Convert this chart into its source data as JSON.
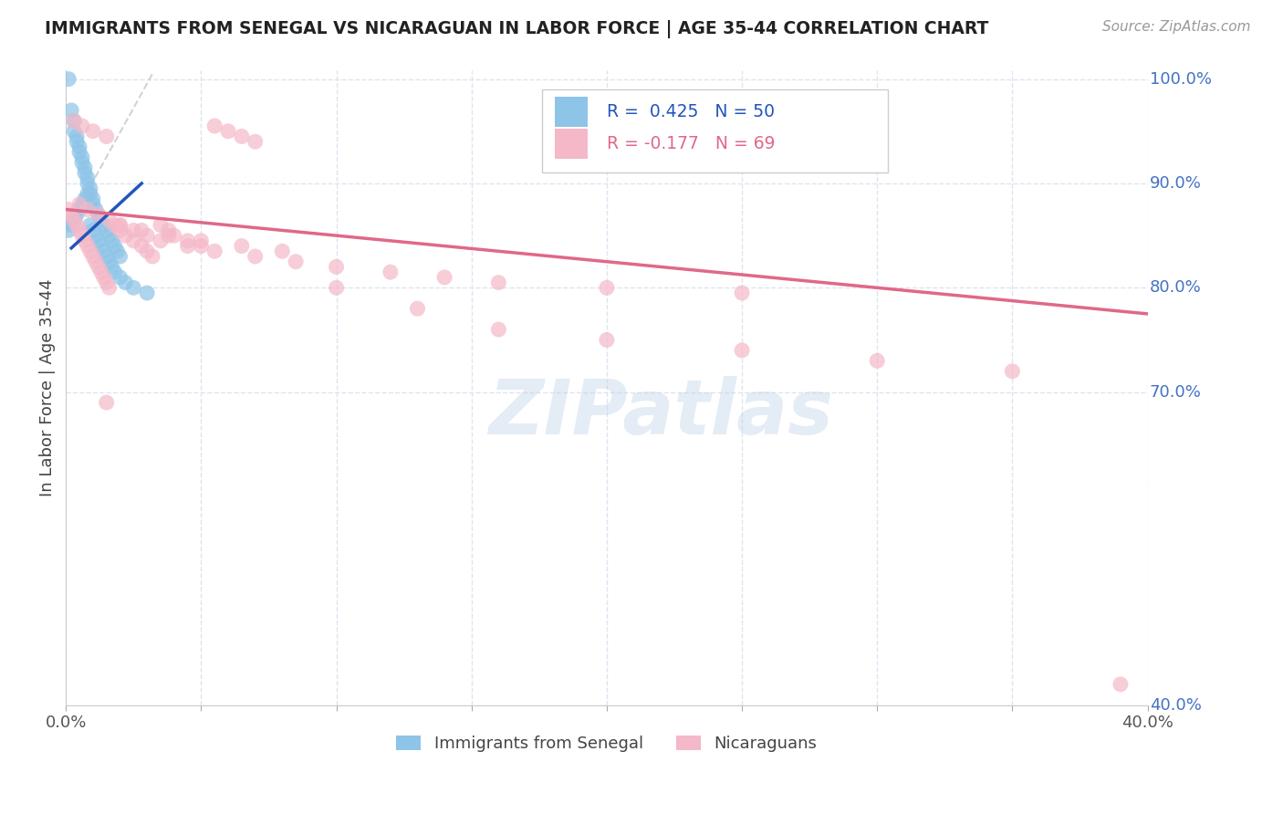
{
  "title": "IMMIGRANTS FROM SENEGAL VS NICARAGUAN IN LABOR FORCE | AGE 35-44 CORRELATION CHART",
  "source": "Source: ZipAtlas.com",
  "ylabel": "In Labor Force | Age 35-44",
  "xmin": 0.0,
  "xmax": 0.4,
  "ymin": 0.4,
  "ymax": 1.008,
  "blue_color": "#8ec4e8",
  "pink_color": "#f4b8c8",
  "blue_line_color": "#2255bb",
  "pink_line_color": "#e06888",
  "diag_color": "#c8c8c8",
  "grid_color": "#dde4f0",
  "right_label_color": "#4472c4",
  "watermark_color": "#bdd0e8",
  "background_color": "#ffffff",
  "senegal_x": [
    0.001,
    0.002,
    0.003,
    0.003,
    0.004,
    0.004,
    0.005,
    0.005,
    0.006,
    0.006,
    0.007,
    0.007,
    0.008,
    0.008,
    0.009,
    0.009,
    0.01,
    0.01,
    0.011,
    0.012,
    0.013,
    0.014,
    0.015,
    0.016,
    0.017,
    0.018,
    0.019,
    0.02,
    0.001,
    0.002,
    0.003,
    0.004,
    0.005,
    0.006,
    0.007,
    0.008,
    0.009,
    0.01,
    0.011,
    0.012,
    0.013,
    0.014,
    0.015,
    0.016,
    0.017,
    0.018,
    0.02,
    0.022,
    0.025,
    0.03
  ],
  "senegal_y": [
    1.0,
    0.97,
    0.96,
    0.95,
    0.945,
    0.94,
    0.935,
    0.93,
    0.925,
    0.92,
    0.915,
    0.91,
    0.905,
    0.9,
    0.895,
    0.89,
    0.885,
    0.88,
    0.875,
    0.87,
    0.865,
    0.86,
    0.855,
    0.85,
    0.845,
    0.84,
    0.835,
    0.83,
    0.855,
    0.86,
    0.865,
    0.87,
    0.875,
    0.88,
    0.885,
    0.89,
    0.86,
    0.855,
    0.85,
    0.845,
    0.84,
    0.835,
    0.83,
    0.825,
    0.82,
    0.815,
    0.81,
    0.805,
    0.8,
    0.795
  ],
  "nicaraguan_x": [
    0.001,
    0.002,
    0.003,
    0.004,
    0.005,
    0.006,
    0.007,
    0.008,
    0.009,
    0.01,
    0.011,
    0.012,
    0.013,
    0.014,
    0.015,
    0.016,
    0.018,
    0.02,
    0.022,
    0.025,
    0.028,
    0.03,
    0.032,
    0.035,
    0.038,
    0.04,
    0.045,
    0.05,
    0.055,
    0.06,
    0.065,
    0.07,
    0.005,
    0.008,
    0.012,
    0.016,
    0.02,
    0.025,
    0.03,
    0.035,
    0.045,
    0.055,
    0.07,
    0.085,
    0.1,
    0.12,
    0.14,
    0.16,
    0.2,
    0.25,
    0.003,
    0.006,
    0.01,
    0.015,
    0.02,
    0.028,
    0.038,
    0.05,
    0.065,
    0.08,
    0.1,
    0.13,
    0.16,
    0.2,
    0.25,
    0.3,
    0.35,
    0.015,
    0.39
  ],
  "nicaraguan_y": [
    0.875,
    0.87,
    0.865,
    0.86,
    0.855,
    0.85,
    0.845,
    0.84,
    0.835,
    0.83,
    0.825,
    0.82,
    0.815,
    0.81,
    0.805,
    0.8,
    0.86,
    0.855,
    0.85,
    0.845,
    0.84,
    0.835,
    0.83,
    0.86,
    0.855,
    0.85,
    0.845,
    0.84,
    0.955,
    0.95,
    0.945,
    0.94,
    0.88,
    0.875,
    0.87,
    0.865,
    0.86,
    0.855,
    0.85,
    0.845,
    0.84,
    0.835,
    0.83,
    0.825,
    0.82,
    0.815,
    0.81,
    0.805,
    0.8,
    0.795,
    0.96,
    0.955,
    0.95,
    0.945,
    0.86,
    0.855,
    0.85,
    0.845,
    0.84,
    0.835,
    0.8,
    0.78,
    0.76,
    0.75,
    0.74,
    0.73,
    0.72,
    0.69,
    0.42
  ],
  "ytick_vals": [
    1.0,
    0.9,
    0.8,
    0.7,
    0.4
  ],
  "ytick_labels": [
    "100.0%",
    "90.0%",
    "80.0%",
    "70.0%",
    "40.0%"
  ],
  "xtick_positions": [
    0.0,
    0.05,
    0.1,
    0.15,
    0.2,
    0.25,
    0.3,
    0.35,
    0.4
  ],
  "xtick_labels": [
    "0.0%",
    "",
    "",
    "",
    "",
    "",
    "",
    "",
    "40.0%"
  ],
  "pink_line_x": [
    0.0,
    0.4
  ],
  "pink_line_y": [
    0.875,
    0.775
  ],
  "blue_line_x": [
    0.002,
    0.028
  ],
  "blue_line_y": [
    0.838,
    0.9
  ],
  "diag_line_x": [
    0.0,
    0.032
  ],
  "diag_line_y": [
    0.855,
    1.005
  ],
  "watermark": "ZIPatlas",
  "legend_entries": [
    {
      "label": "R =  0.425   N = 50",
      "color": "#2255bb"
    },
    {
      "label": "R = -0.177   N = 69",
      "color": "#e06888"
    }
  ],
  "bottom_legend": [
    "Immigrants from Senegal",
    "Nicaraguans"
  ]
}
